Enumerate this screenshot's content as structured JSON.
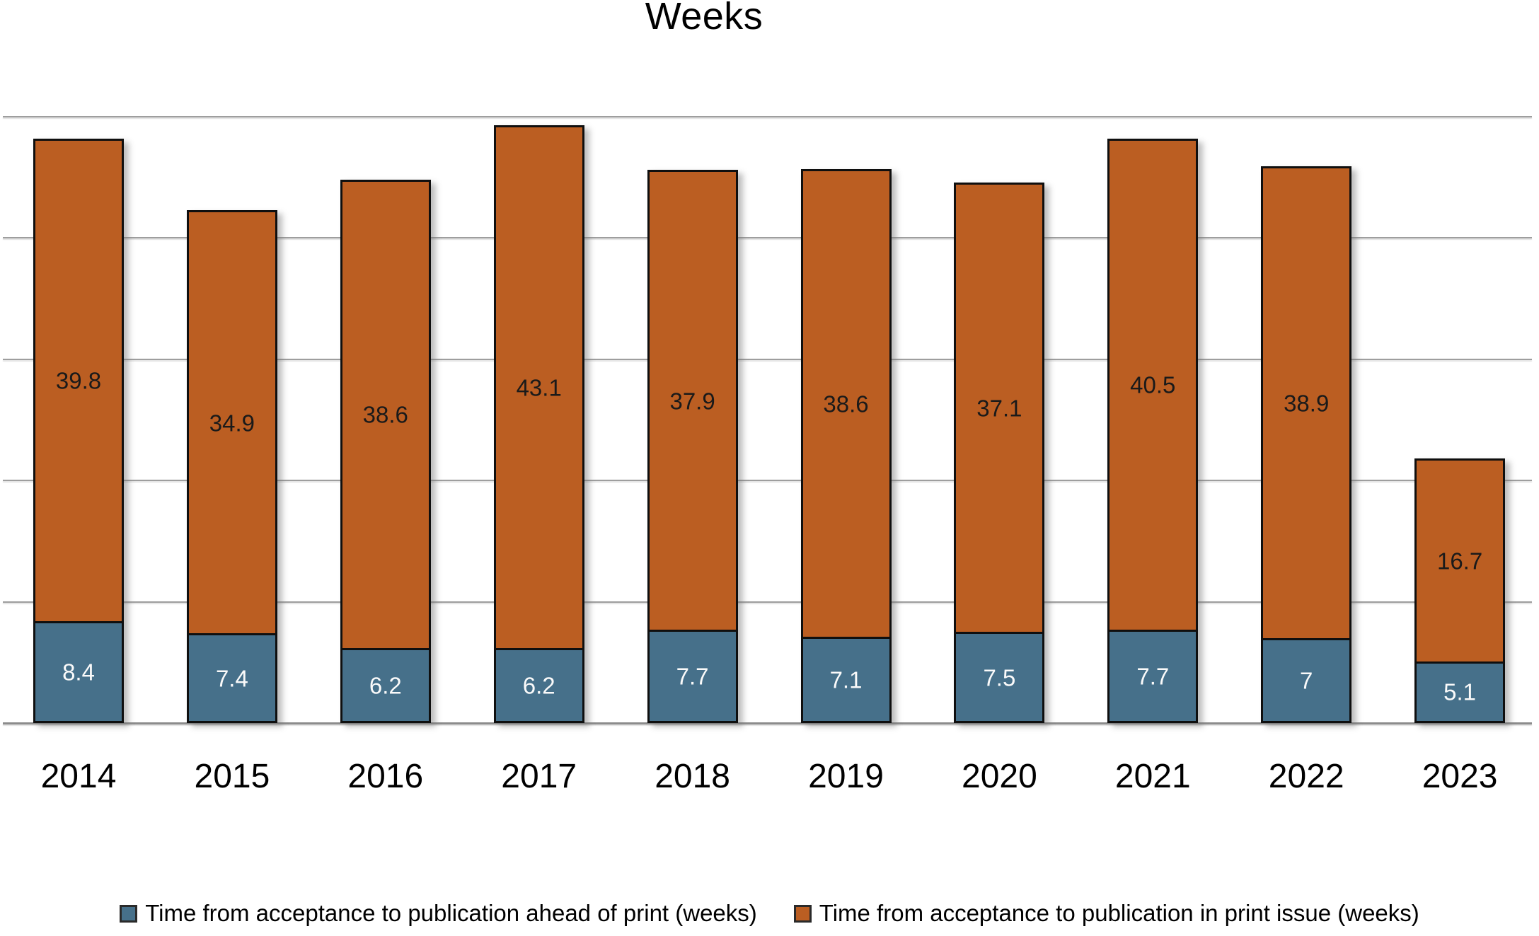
{
  "chart_data": {
    "type": "bar",
    "stacked": true,
    "title": "Weeks",
    "categories": [
      "2014",
      "2015",
      "2016",
      "2017",
      "2018",
      "2019",
      "2020",
      "2021",
      "2022",
      "2023"
    ],
    "series": [
      {
        "name": "Time from acceptance to publication ahead of print (weeks)",
        "color": "#46708A",
        "label_color": "#fafafa",
        "values": [
          8.4,
          7.4,
          6.2,
          6.2,
          7.7,
          7.1,
          7.5,
          7.7,
          7,
          5.1
        ]
      },
      {
        "name": "Time from acceptance to publication in print issue (weeks)",
        "color": "#BB5E22",
        "label_color": "#1a1a1a",
        "values": [
          39.8,
          34.9,
          38.6,
          43.1,
          37.9,
          38.6,
          37.1,
          40.5,
          38.9,
          16.7
        ]
      }
    ],
    "xlabel": "",
    "ylabel": "",
    "ylim": [
      0,
      50
    ],
    "gridline_step": 10,
    "grid": true,
    "y_tick_labels_visible": false,
    "legend_position": "bottom",
    "bar_border_color": "#0f0f0f",
    "gridline_color": "#9e9e9e"
  }
}
